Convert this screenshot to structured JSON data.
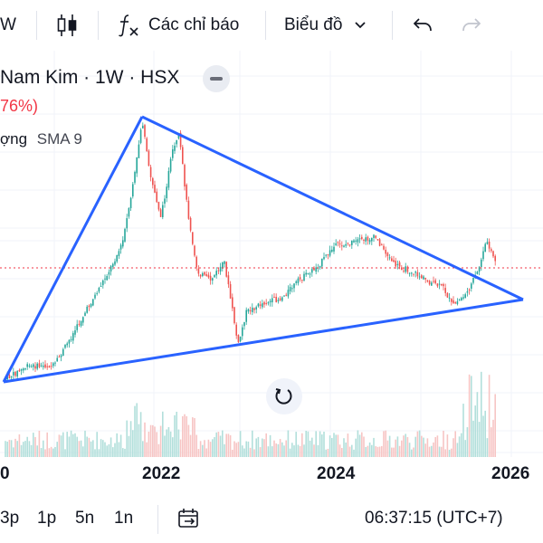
{
  "toolbar": {
    "left_partial": "W",
    "indicators_label": "Các chỉ báo",
    "chart_type_label": "Biểu đồ"
  },
  "header": {
    "symbol_partial": "Nam Kim · 1W · HSX",
    "change_partial": "76%)",
    "change_open_paren_hidden": "(",
    "volume_partial": "ợng",
    "sma_label": "SMA 9"
  },
  "x_axis": {
    "left_partial": "0",
    "labels": [
      "2022",
      "2024",
      "2026"
    ]
  },
  "bottombar": {
    "timeframes": [
      "3p",
      "1p",
      "5n",
      "1n"
    ],
    "clock": "06:37:15 (UTC+7)"
  },
  "colors": {
    "up": "#26a69a",
    "down": "#ef5350",
    "trendline": "#2962ff",
    "price_line": "#f23645",
    "change_text": "#f23645"
  },
  "chart_data": {
    "type": "candlestick",
    "x_ticks": [
      "2022",
      "2024",
      "2026"
    ],
    "grid": true,
    "trendlines": 3
  }
}
